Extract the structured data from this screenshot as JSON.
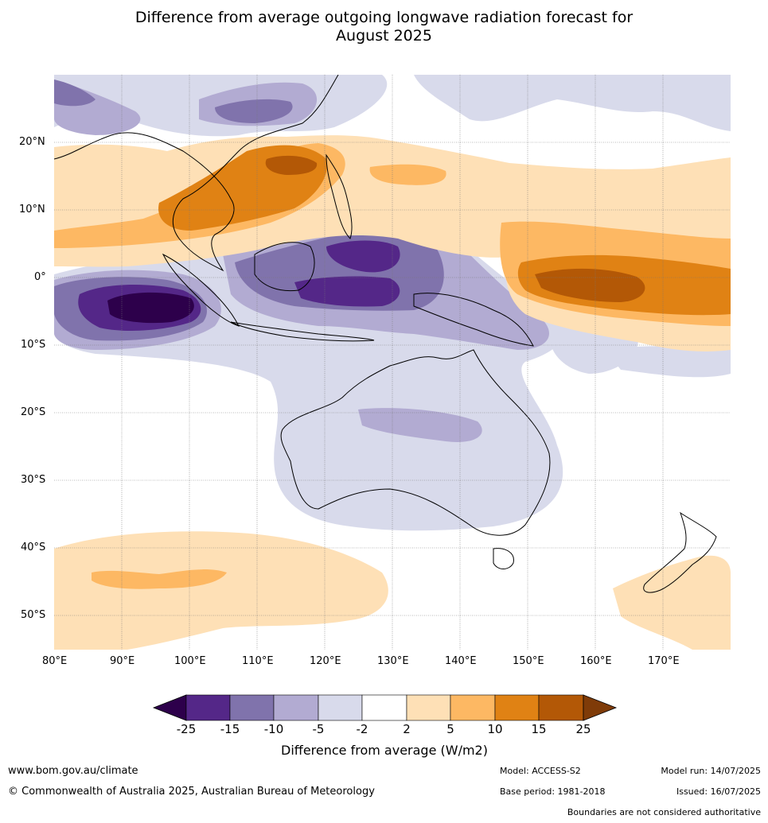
{
  "title_line1": "Difference from average outgoing longwave radiation forecast for",
  "title_line2": "August 2025",
  "lat_labels": [
    "20°N",
    "10°N",
    "0°",
    "10°S",
    "20°S",
    "30°S",
    "40°S",
    "50°S"
  ],
  "lon_labels": [
    "80°E",
    "90°E",
    "100°E",
    "110°E",
    "120°E",
    "130°E",
    "140°E",
    "150°E",
    "160°E",
    "170°E"
  ],
  "colorbar": {
    "ticks": [
      "-25",
      "-15",
      "-10",
      "-5",
      "-2",
      "2",
      "5",
      "10",
      "15",
      "25"
    ],
    "colors": [
      "#2d004b",
      "#542788",
      "#8073ac",
      "#b2abd2",
      "#d8daeb",
      "#ffffff",
      "#fee0b6",
      "#fdb863",
      "#e08214",
      "#b35806",
      "#7f3b08"
    ],
    "label": "Difference from average (W/m2)"
  },
  "colors": {
    "strong_negative": "#542788",
    "negative": "#8073ac",
    "mild_negative": "#b2abd2",
    "slight_negative": "#d8daeb",
    "slight_positive": "#fee0b6",
    "mild_positive": "#fdb863",
    "positive": "#e08214",
    "strong_positive": "#b35806",
    "extreme_negative": "#2d004b"
  },
  "footer": {
    "url": "www.bom.gov.au/climate",
    "copyright": "© Commonwealth of Australia 2025, Australian Bureau of Meteorology",
    "model": "Model: ACCESS-S2",
    "model_run": "Model run: 14/07/2025",
    "base_period": "Base period: 1981-2018",
    "issued": "Issued: 16/07/2025",
    "disclaimer": "Boundaries are not considered authoritative"
  }
}
